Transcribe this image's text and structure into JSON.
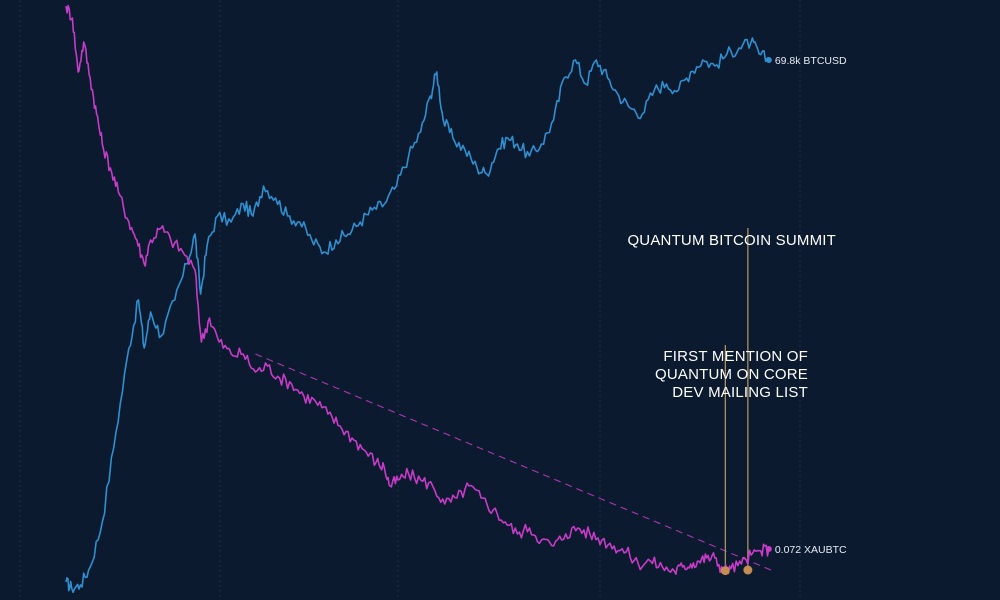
{
  "chart_data": {
    "type": "line",
    "title": "",
    "xlabel": "",
    "ylabel": "",
    "grid": true,
    "log_scale": true,
    "colors": {
      "background": "#0b1a2e",
      "grid": "#1d3048",
      "BTCUSD": "#2f8fd0",
      "XAUBTC": "#c73bc9",
      "annotation_line": "#b89a62",
      "annotation_marker": "#c58d52",
      "trendline": "#c73bc9"
    },
    "series": [
      {
        "name": "BTCUSD",
        "end_label": "69.8k BTCUSD",
        "points": [
          [
            0.0,
            0.03
          ],
          [
            0.007,
            0.02
          ],
          [
            0.018,
            0.025
          ],
          [
            0.03,
            0.055
          ],
          [
            0.045,
            0.13
          ],
          [
            0.062,
            0.28
          ],
          [
            0.078,
            0.42
          ],
          [
            0.09,
            0.5
          ],
          [
            0.097,
            0.42
          ],
          [
            0.105,
            0.48
          ],
          [
            0.118,
            0.44
          ],
          [
            0.135,
            0.5
          ],
          [
            0.15,
            0.56
          ],
          [
            0.16,
            0.61
          ],
          [
            0.167,
            0.51
          ],
          [
            0.175,
            0.59
          ],
          [
            0.188,
            0.64
          ],
          [
            0.205,
            0.63
          ],
          [
            0.22,
            0.66
          ],
          [
            0.232,
            0.64
          ],
          [
            0.245,
            0.69
          ],
          [
            0.26,
            0.67
          ],
          [
            0.275,
            0.64
          ],
          [
            0.29,
            0.63
          ],
          [
            0.305,
            0.6
          ],
          [
            0.32,
            0.58
          ],
          [
            0.335,
            0.6
          ],
          [
            0.35,
            0.61
          ],
          [
            0.365,
            0.63
          ],
          [
            0.38,
            0.65
          ],
          [
            0.395,
            0.66
          ],
          [
            0.41,
            0.69
          ],
          [
            0.425,
            0.74
          ],
          [
            0.44,
            0.78
          ],
          [
            0.452,
            0.84
          ],
          [
            0.46,
            0.88
          ],
          [
            0.468,
            0.8
          ],
          [
            0.48,
            0.77
          ],
          [
            0.495,
            0.75
          ],
          [
            0.51,
            0.72
          ],
          [
            0.522,
            0.71
          ],
          [
            0.535,
            0.75
          ],
          [
            0.548,
            0.77
          ],
          [
            0.56,
            0.76
          ],
          [
            0.575,
            0.74
          ],
          [
            0.59,
            0.76
          ],
          [
            0.605,
            0.8
          ],
          [
            0.618,
            0.87
          ],
          [
            0.632,
            0.9
          ],
          [
            0.645,
            0.86
          ],
          [
            0.658,
            0.9
          ],
          [
            0.672,
            0.87
          ],
          [
            0.686,
            0.84
          ],
          [
            0.7,
            0.82
          ],
          [
            0.715,
            0.81
          ],
          [
            0.73,
            0.85
          ],
          [
            0.745,
            0.86
          ],
          [
            0.76,
            0.85
          ],
          [
            0.775,
            0.88
          ],
          [
            0.79,
            0.9
          ],
          [
            0.805,
            0.89
          ],
          [
            0.82,
            0.91
          ],
          [
            0.835,
            0.92
          ],
          [
            0.85,
            0.93
          ],
          [
            0.86,
            0.91
          ],
          [
            0.872,
            0.9
          ]
        ]
      },
      {
        "name": "XAUBTC",
        "end_label": "0.072 XAUBTC",
        "points": [
          [
            0.0,
            0.99
          ],
          [
            0.008,
            0.97
          ],
          [
            0.015,
            0.88
          ],
          [
            0.022,
            0.93
          ],
          [
            0.03,
            0.87
          ],
          [
            0.038,
            0.81
          ],
          [
            0.045,
            0.76
          ],
          [
            0.055,
            0.72
          ],
          [
            0.065,
            0.68
          ],
          [
            0.078,
            0.63
          ],
          [
            0.088,
            0.6
          ],
          [
            0.097,
            0.56
          ],
          [
            0.105,
            0.6
          ],
          [
            0.118,
            0.62
          ],
          [
            0.13,
            0.6
          ],
          [
            0.145,
            0.58
          ],
          [
            0.16,
            0.55
          ],
          [
            0.168,
            0.43
          ],
          [
            0.178,
            0.47
          ],
          [
            0.19,
            0.43
          ],
          [
            0.205,
            0.41
          ],
          [
            0.22,
            0.41
          ],
          [
            0.235,
            0.38
          ],
          [
            0.25,
            0.39
          ],
          [
            0.265,
            0.37
          ],
          [
            0.28,
            0.36
          ],
          [
            0.295,
            0.34
          ],
          [
            0.31,
            0.33
          ],
          [
            0.325,
            0.31
          ],
          [
            0.34,
            0.29
          ],
          [
            0.355,
            0.27
          ],
          [
            0.37,
            0.25
          ],
          [
            0.385,
            0.23
          ],
          [
            0.395,
            0.22
          ],
          [
            0.402,
            0.19
          ],
          [
            0.412,
            0.2
          ],
          [
            0.425,
            0.21
          ],
          [
            0.44,
            0.2
          ],
          [
            0.455,
            0.19
          ],
          [
            0.47,
            0.16
          ],
          [
            0.485,
            0.17
          ],
          [
            0.5,
            0.19
          ],
          [
            0.515,
            0.17
          ],
          [
            0.53,
            0.15
          ],
          [
            0.545,
            0.13
          ],
          [
            0.56,
            0.11
          ],
          [
            0.575,
            0.12
          ],
          [
            0.59,
            0.1
          ],
          [
            0.605,
            0.09
          ],
          [
            0.62,
            0.11
          ],
          [
            0.635,
            0.12
          ],
          [
            0.65,
            0.11
          ],
          [
            0.665,
            0.1
          ],
          [
            0.68,
            0.09
          ],
          [
            0.695,
            0.08
          ],
          [
            0.71,
            0.06
          ],
          [
            0.725,
            0.065
          ],
          [
            0.74,
            0.055
          ],
          [
            0.755,
            0.048
          ],
          [
            0.765,
            0.055
          ],
          [
            0.775,
            0.06
          ],
          [
            0.785,
            0.065
          ],
          [
            0.795,
            0.07
          ],
          [
            0.805,
            0.07
          ],
          [
            0.815,
            0.05
          ],
          [
            0.825,
            0.052
          ],
          [
            0.838,
            0.06
          ],
          [
            0.85,
            0.075
          ],
          [
            0.862,
            0.082
          ],
          [
            0.872,
            0.085
          ]
        ]
      }
    ],
    "trendline": {
      "from": [
        0.235,
        0.41
      ],
      "to": [
        0.878,
        0.048
      ]
    },
    "annotations": [
      {
        "lines": [
          "FIRST MENTION OF",
          "QUANTUM ON CORE",
          "DEV MAILING LIST"
        ],
        "x": 0.818,
        "y": 0.049
      },
      {
        "lines": [
          "QUANTUM BITCOIN SUMMIT"
        ],
        "x": 0.846,
        "y": 0.05
      }
    ]
  }
}
